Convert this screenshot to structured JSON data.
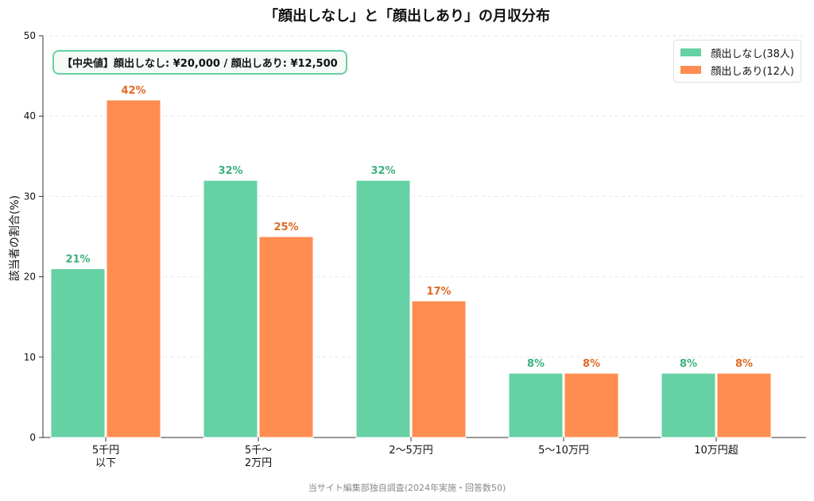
{
  "chart_data": {
    "type": "bar",
    "title": "「顔出しなし」と「顔出しあり」の月収分布",
    "ylabel": "該当者の割合(%)",
    "ylim": [
      0,
      50
    ],
    "yticks": [
      0,
      10,
      20,
      30,
      40,
      50
    ],
    "categories": [
      [
        "5千円",
        "以下"
      ],
      [
        "5千〜",
        "2万円"
      ],
      [
        "2〜5万円"
      ],
      [
        "5〜10万円"
      ],
      [
        "10万円超"
      ]
    ],
    "series": [
      {
        "name": "顔出しなし(38人)",
        "color": "#66d1a4",
        "label_color": "#3bb17d",
        "values": [
          21,
          32,
          32,
          8,
          8
        ],
        "labels": [
          "21%",
          "32%",
          "32%",
          "8%",
          "8%"
        ]
      },
      {
        "name": "顔出しあり(12人)",
        "color": "#ff8c50",
        "label_color": "#e06a25",
        "values": [
          42,
          25,
          17,
          8,
          8
        ],
        "labels": [
          "42%",
          "25%",
          "17%",
          "8%",
          "8%"
        ]
      }
    ],
    "grid": true,
    "legend": "top-right",
    "annotation": "【中央値】顔出しなし: ¥20,000 / 顔出しあり: ¥12,500",
    "footnote": "当サイト編集部独自調査(2024年実施・回答数50)"
  }
}
